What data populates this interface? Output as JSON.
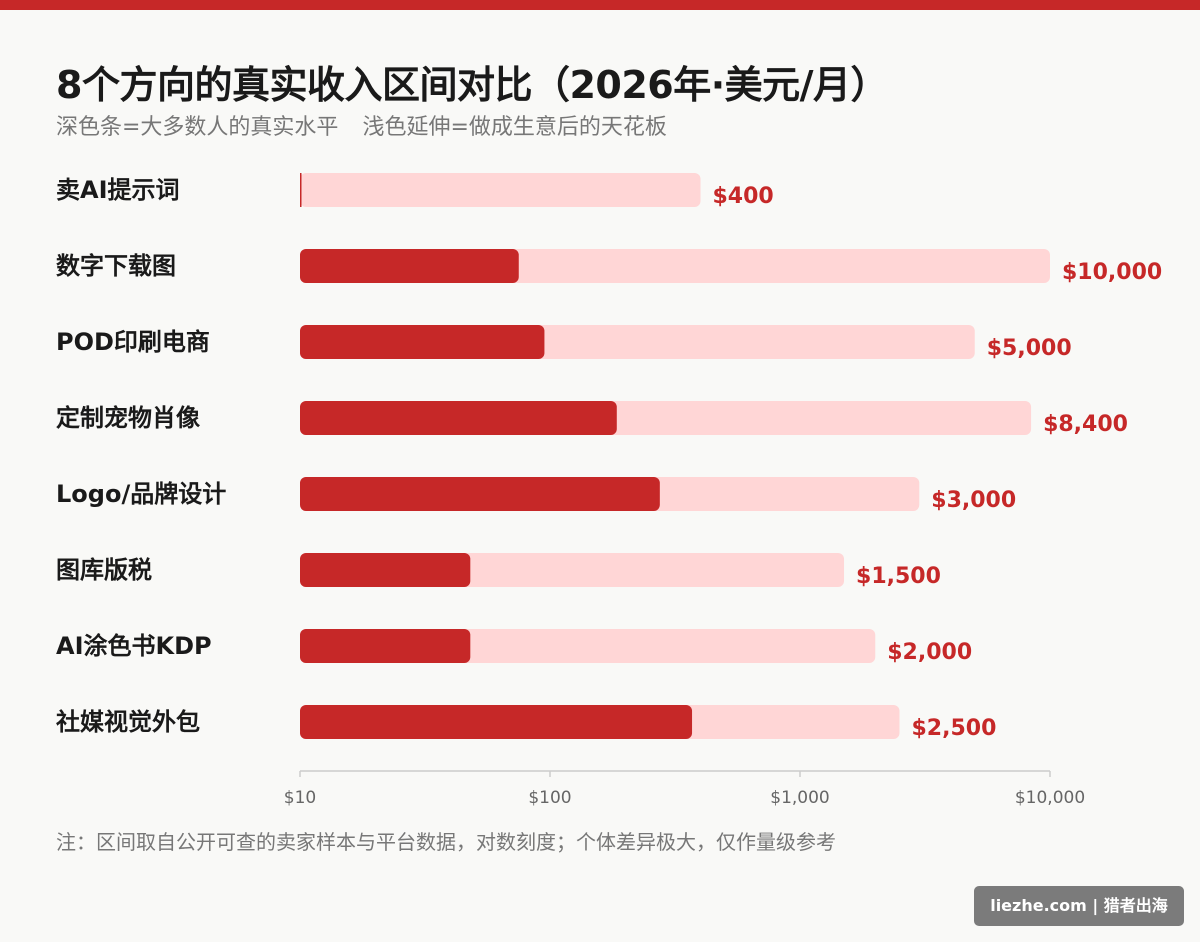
{
  "colors": {
    "accent": "#c62828",
    "ceiling": "#ffd6d6",
    "axis": "#cccccc",
    "label": "#1a1a1a",
    "tick": "#666666"
  },
  "header": {
    "title": "8个方向的真实收入区间对比（2026年·美元/月）",
    "subtitle_dark": "深色条=大多数人的真实水平",
    "subtitle_light": "浅色延伸=做成生意后的天花板"
  },
  "chart_data": {
    "type": "bar",
    "orientation": "horizontal",
    "scale": "log",
    "xlim": [
      10,
      10000
    ],
    "xticks": [
      10,
      100,
      1000,
      10000
    ],
    "xtick_labels": [
      "$10",
      "$100",
      "$1,000",
      "$10,000"
    ],
    "grid": false,
    "categories": [
      "卖AI提示词",
      "数字下载图",
      "POD印刷电商",
      "定制宠物肖像",
      "Logo/品牌设计",
      "图库版税",
      "AI涂色书KDP",
      "社媒视觉外包"
    ],
    "series": [
      {
        "name": "深色条=大多数人的真实水平",
        "values": [
          10,
          75,
          95,
          185,
          275,
          48,
          48,
          370
        ]
      },
      {
        "name": "浅色延伸=做成生意后的天花板",
        "values": [
          400,
          10000,
          5000,
          8400,
          3000,
          1500,
          2000,
          2500
        ]
      }
    ],
    "value_labels": [
      "$400",
      "$10,000",
      "$5,000",
      "$8,400",
      "$3,000",
      "$1,500",
      "$2,000",
      "$2,500"
    ]
  },
  "footer": {
    "note": "注：区间取自公开可查的卖家样本与平台数据，对数刻度；个体差异极大，仅作量级参考",
    "watermark": "liezhe.com | 猎者出海"
  }
}
